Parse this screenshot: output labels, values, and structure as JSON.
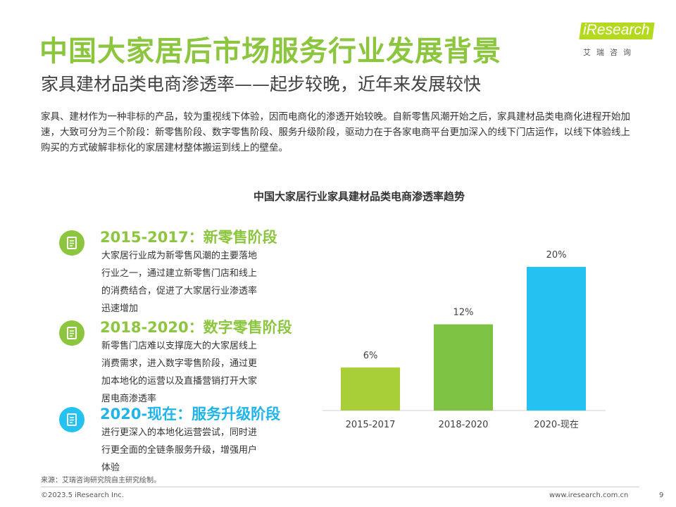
{
  "header": {
    "title": "中国大家居后市场服务行业发展背景",
    "subtitle": "家具建材品类电商渗透率——起步较晚，近年来发展较快"
  },
  "logo": {
    "word": "iResearch",
    "cn": "艾瑞咨询",
    "color": "#b5d91e"
  },
  "intro": "家具、建材作为一种非标的产品，较为重视线下体验，因而电商化的渗透开始较晚。自新零售风潮开始之后，家具建材品类电商化进程开始加速，大致可分为三个阶段：新零售阶段、数字零售阶段、服务升级阶段，驱动力在于各家电商平台更加深入的线下门店运作，以线下体验线上购买的方式破解非标化的家居建材整体搬运到线上的壁垒。",
  "stages": [
    {
      "heading": "2015-2017：新零售阶段",
      "text": "大家居行业成为新零售风潮的主要落地行业之一，通过建立新零售门店和线上的消费结合，促进了大家居行业渗透率迅速增加",
      "icon": "document-icon",
      "color": "#8cc63f"
    },
    {
      "heading": "2018-2020：数字零售阶段",
      "text": "新零售门店难以支撑庞大的大家居线上消费需求，进入数字零售阶段，通过更加本地化的运营以及直播营销打开大家居电商渗透率",
      "icon": "document-icon",
      "color": "#8cc63f"
    },
    {
      "heading": "2020-现在：服务升级阶段",
      "text": "进行更深入的本地化运营尝试，同时进行更全面的全链条服务升级，增强用户体验",
      "icon": "document-icon",
      "color": "#23c2f0"
    }
  ],
  "chart_data": {
    "type": "bar",
    "title": "中国大家居行业家具建材品类电商渗透率趋势",
    "categories": [
      "2015-2017",
      "2018-2020",
      "2020-现在"
    ],
    "values": [
      6,
      12,
      20
    ],
    "value_labels": [
      "6%",
      "12%",
      "20%"
    ],
    "colors": [
      "#a8cf38",
      "#7dc242",
      "#23c2f0"
    ],
    "xlabel": "",
    "ylabel": "",
    "ylim": [
      0,
      20
    ],
    "grid": false,
    "legend": "none"
  },
  "footer": {
    "source": "来源：艾瑞咨询研究院自主研究绘制。",
    "copyright": "©2023.5 iResearch Inc.",
    "website": "www.iresearch.com.cn",
    "page": "9"
  }
}
